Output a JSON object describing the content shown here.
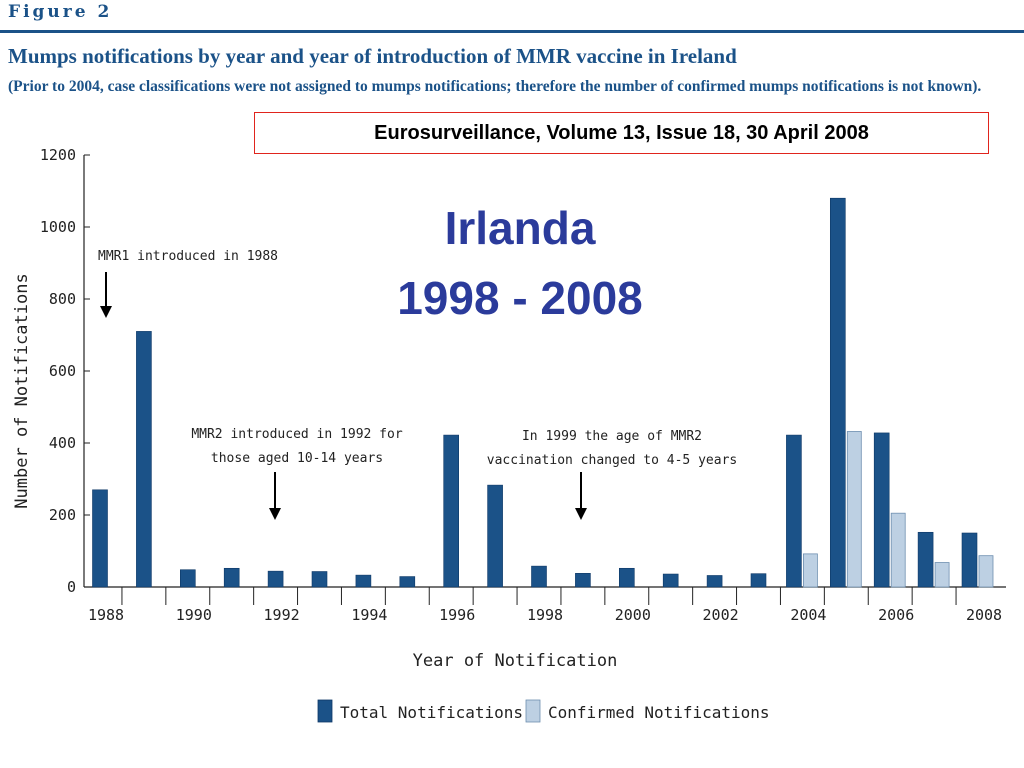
{
  "header": {
    "figure_label": "Figure 2",
    "title": "Mumps notifications by year and year of introduction of MMR vaccine in Ireland",
    "subtitle": "(Prior to 2004, case classifications were not assigned to mumps notifications; therefore the number of confirmed mumps notifications is not known)."
  },
  "source": "Eurosurveillance, Volume 13, Issue 18, 30 April 2008",
  "overlay": {
    "country": "Irlanda",
    "years": "1998 - 2008"
  },
  "colors": {
    "total": "#1b5288",
    "confirmed": "#bdd0e3",
    "brand": "#1b5288",
    "overlay": "#2b3b9b",
    "source_border": "#e0241d"
  },
  "chart_data": {
    "type": "bar",
    "xlabel": "Year of Notification",
    "ylabel": "Number of Notifications",
    "ylim": [
      0,
      1200
    ],
    "yticks": [
      0,
      200,
      400,
      600,
      800,
      1000,
      1200
    ],
    "categories": [
      "1988",
      "1989",
      "1990",
      "1991",
      "1992",
      "1993",
      "1994",
      "1995",
      "1996",
      "1997",
      "1998",
      "1999",
      "2000",
      "2001",
      "2002",
      "2003",
      "2004",
      "2005",
      "2006",
      "2007",
      "2008"
    ],
    "xtick_labels": [
      "1988",
      "1990",
      "1992",
      "1994",
      "1996",
      "1998",
      "2000",
      "2002",
      "2004",
      "2006",
      "2008"
    ],
    "series": [
      {
        "name": "Total Notifications",
        "values": [
          270,
          710,
          48,
          52,
          44,
          43,
          33,
          29,
          422,
          283,
          58,
          38,
          52,
          36,
          32,
          37,
          422,
          1080,
          428,
          152,
          150
        ]
      },
      {
        "name": "Confirmed Notifications",
        "values": [
          null,
          null,
          null,
          null,
          null,
          null,
          null,
          null,
          null,
          null,
          null,
          null,
          null,
          null,
          null,
          null,
          92,
          432,
          205,
          68,
          87
        ]
      }
    ],
    "annotations": [
      {
        "lines": [
          "MMR1 introduced in 1988"
        ],
        "year": "1988"
      },
      {
        "lines": [
          "MMR2 introduced in 1992 for",
          "those aged 10-14 years"
        ],
        "year": "1992"
      },
      {
        "lines": [
          "In 1999 the age of MMR2",
          "vaccination changed to 4-5 years"
        ],
        "year": "1999"
      }
    ]
  }
}
